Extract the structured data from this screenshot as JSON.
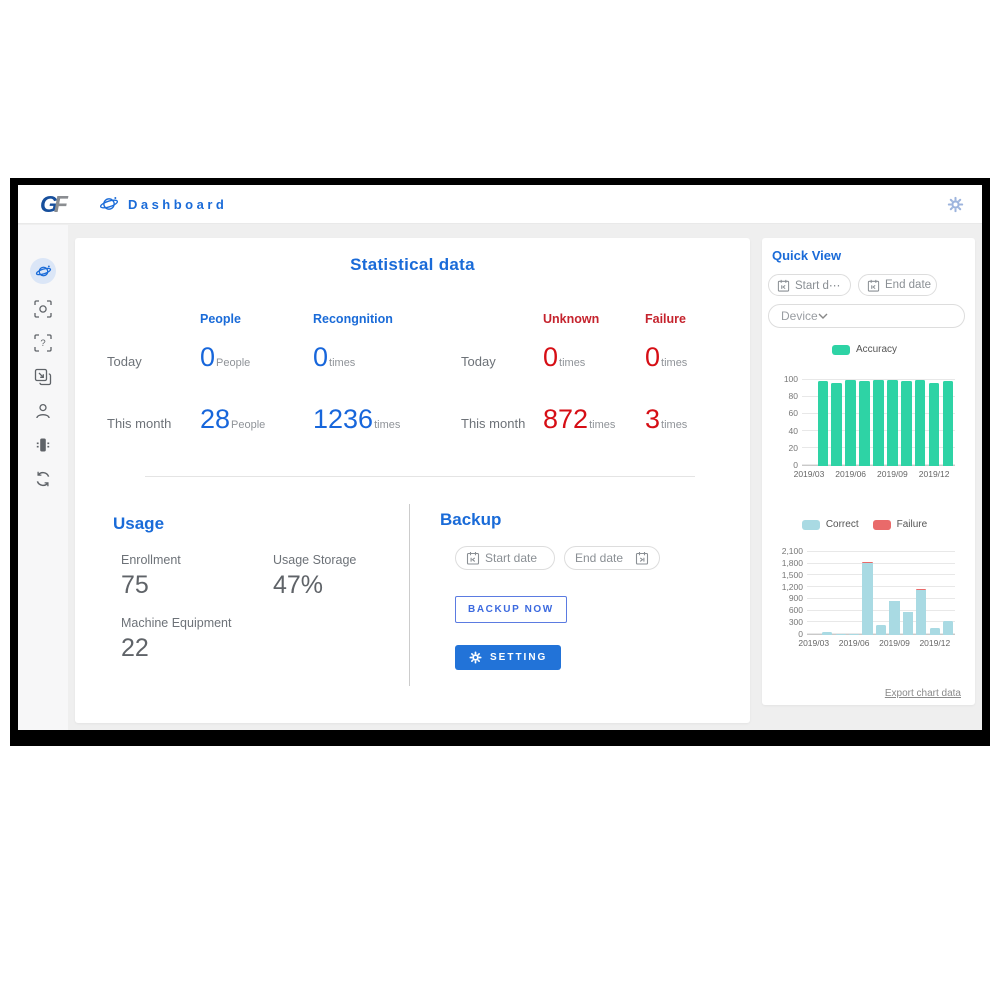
{
  "header": {
    "logo_g": "G",
    "logo_f": "F",
    "title": "Dashboard"
  },
  "icons": {
    "header": [
      "planet-icon",
      "gear-icon"
    ],
    "sidebar": [
      "dashboard-planet-icon",
      "face-scan-icon",
      "unknown-scan-icon",
      "records-icon",
      "users-icon",
      "device-icon",
      "sync-icon"
    ],
    "backup": [
      "calendar-start-icon",
      "calendar-end-icon",
      "gear-icon"
    ],
    "quick_view": [
      "calendar-start-icon",
      "calendar-start-icon",
      "chevron-down-icon"
    ]
  },
  "colors": {
    "accent_blue": "#1a6bd8",
    "number_blue": "#1766db",
    "number_red": "#d60e15",
    "header_red": "#c5232d",
    "setting_button_bg": "#2273d8"
  },
  "stats": {
    "title": "Statistical data",
    "col_people": "People",
    "col_recognition": "Recongnition",
    "col_unknown": "Unknown",
    "col_failure": "Failure",
    "row_today": "Today",
    "row_month": "This month",
    "today_people": "0",
    "today_people_unit": "People",
    "today_recognition": "0",
    "today_recognition_unit": "times",
    "today_unknown": "0",
    "today_unknown_unit": "times",
    "today_failure": "0",
    "today_failure_unit": "times",
    "month_people": "28",
    "month_people_unit": "People",
    "month_recognition": "1236",
    "month_recognition_unit": "times",
    "month_unknown": "872",
    "month_unknown_unit": "times",
    "month_failure": "3",
    "month_failure_unit": "times"
  },
  "usage": {
    "title": "Usage",
    "enrollment_label": "Enrollment",
    "enrollment_value": "75",
    "storage_label": "Usage Storage",
    "storage_value": "47%",
    "machine_label": "Machine Equipment",
    "machine_value": "22"
  },
  "backup": {
    "title": "Backup",
    "start_date_placeholder": "Start date",
    "end_date_placeholder": "End date",
    "backup_now_label": "BACKUP NOW",
    "setting_label": "SETTING"
  },
  "quick_view": {
    "title": "Quick View",
    "start_date_placeholder": "Start d⋯",
    "end_date_placeholder": "End date",
    "device_placeholder": "Device",
    "export_link": "Export chart data"
  },
  "chart_data": [
    {
      "type": "bar",
      "title": "Accuracy",
      "categories": [
        "2019/03",
        "2019/04",
        "2019/05",
        "2019/06",
        "2019/07",
        "2019/08",
        "2019/09",
        "2019/10",
        "2019/11",
        "2019/12",
        "2020/01"
      ],
      "series": [
        {
          "name": "Accuracy",
          "color": "#2ed3a5",
          "values": [
            0,
            99,
            97,
            100,
            99,
            100,
            100,
            99,
            100,
            96,
            99
          ]
        }
      ],
      "ylim": [
        0,
        100
      ],
      "yticks": [
        0,
        20,
        40,
        60,
        80,
        100
      ],
      "xticks": [
        "2019/03",
        "2019/06",
        "2019/09",
        "2019/12"
      ],
      "legend_position": "top",
      "grid": true
    },
    {
      "type": "stacked-bar",
      "title": "Correct / Failure",
      "categories": [
        "2019/03",
        "2019/04",
        "2019/05",
        "2019/06",
        "2019/07",
        "2019/08",
        "2019/09",
        "2019/10",
        "2019/11",
        "2019/12",
        "2020/01"
      ],
      "series": [
        {
          "name": "Correct",
          "color": "#a9dae3",
          "values": [
            0,
            80,
            30,
            30,
            1820,
            250,
            850,
            580,
            1150,
            190,
            350
          ]
        },
        {
          "name": "Failure",
          "color": "#e96a6a",
          "values": [
            0,
            0,
            0,
            0,
            30,
            0,
            10,
            10,
            15,
            0,
            0
          ]
        }
      ],
      "ylim": [
        0,
        2100
      ],
      "yticks": [
        0,
        300,
        600,
        900,
        1200,
        1500,
        1800,
        2100
      ],
      "xticks": [
        "2019/03",
        "2019/06",
        "2019/09",
        "2019/12"
      ],
      "legend_position": "top",
      "grid": true
    }
  ]
}
